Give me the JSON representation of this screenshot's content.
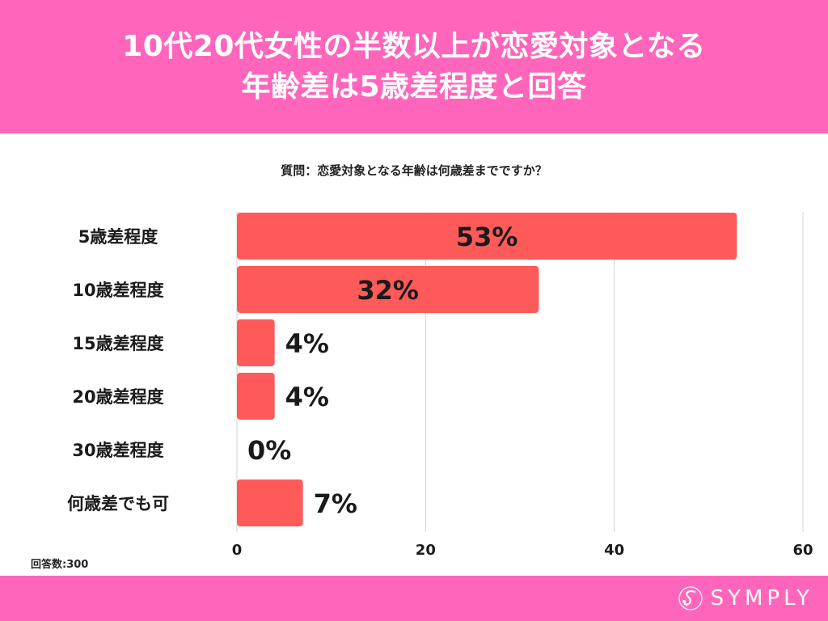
{
  "header": {
    "title_line1": "10代20代女性の半数以上が恋愛対象となる",
    "title_line2": "年齢差は5歳差程度と回答"
  },
  "question": "質問：恋愛対象となる年齢は何歳差までですか？",
  "respondents": "回答数:300",
  "logo": {
    "text": "SYMPLY"
  },
  "colors": {
    "header": "#ff66bb",
    "bar": "#ff5a5a",
    "grid": "#d0d0d0"
  },
  "chart_data": {
    "type": "bar",
    "orientation": "horizontal",
    "categories": [
      "5歳差程度",
      "10歳差程度",
      "15歳差程度",
      "20歳差程度",
      "30歳差程度",
      "何歳差でも可"
    ],
    "values": [
      53,
      32,
      4,
      4,
      0,
      7
    ],
    "value_labels": [
      "53%",
      "32%",
      "4%",
      "4%",
      "0%",
      "7%"
    ],
    "xlim": [
      0,
      60
    ],
    "xticks": [
      0,
      20,
      40,
      60
    ],
    "grid": true,
    "legend": "none"
  }
}
